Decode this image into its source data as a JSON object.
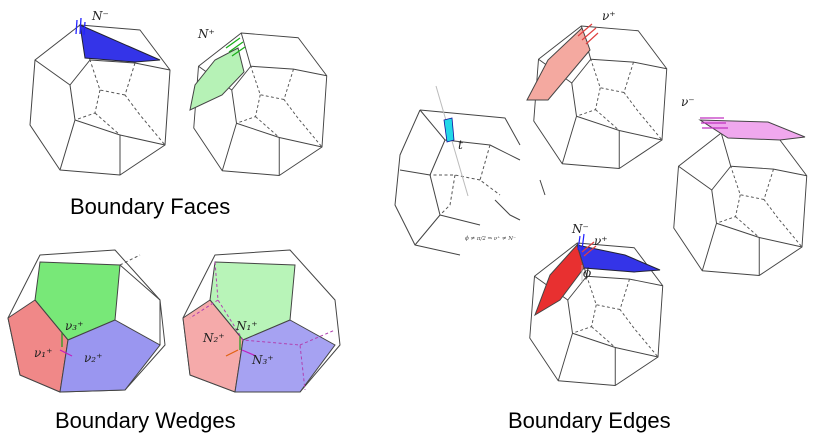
{
  "captions": {
    "faces": "Boundary Faces",
    "wedges": "Boundary Wedges",
    "edges": "Boundary Edges"
  },
  "labels": {
    "N_minus": "N⁻",
    "N_plus": "N⁺",
    "nu_plus": "ν⁺",
    "nu_minus": "ν⁻",
    "t": "t",
    "phi": "ϕ",
    "nu3_plus": "ν₃⁺",
    "nu1_plus": "ν₁⁺",
    "nu2_plus": "ν₂⁺",
    "N1_plus": "N₁⁺",
    "N2_plus": "N₂⁺",
    "N3_plus": "N₃⁺",
    "condition": "ϕ ≠ π/2 ⇒ ν⁺ ≠ N⁻"
  },
  "colors": {
    "blue_face": "#3434e8",
    "green_face": "#b6f2b6",
    "pink_face": "#f4a9a0",
    "magenta_face": "#f0a8ee",
    "cyan_face": "#22d8e8",
    "red_face": "#e83030",
    "wedge_green": "#78e878",
    "wedge_red": "#f08888",
    "wedge_blue": "#9a96f0"
  }
}
